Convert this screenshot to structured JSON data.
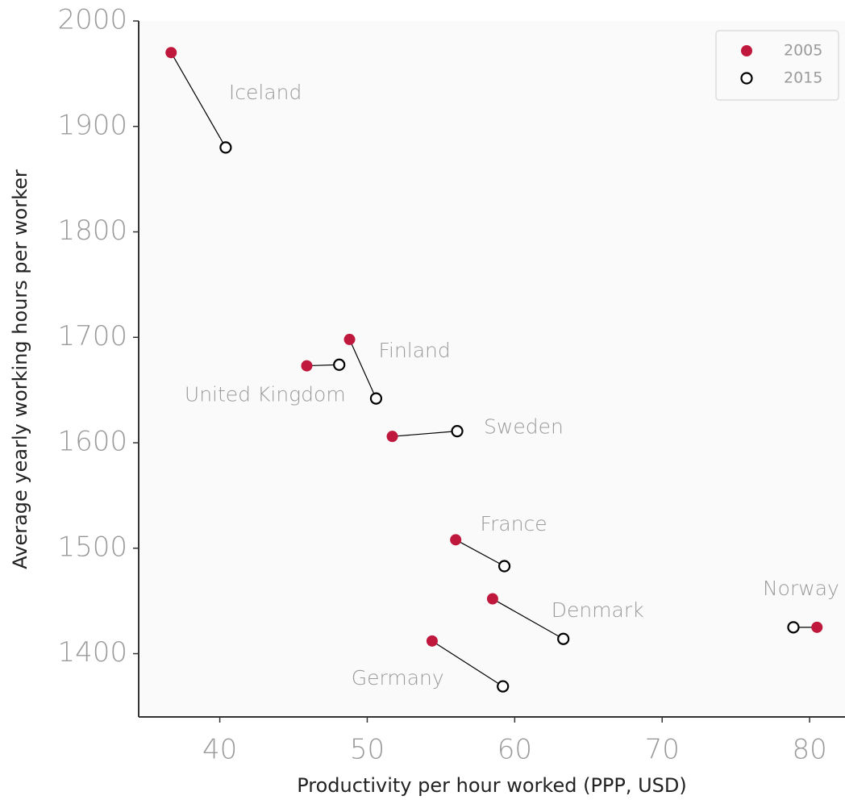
{
  "chart_data": {
    "type": "dumbbell",
    "xlabel": "Productivity per hour worked (PPP, USD)",
    "ylabel": "Average yearly working hours per worker",
    "categories": [
      "Iceland",
      "Finland",
      "United Kingdom",
      "Sweden",
      "France",
      "Denmark",
      "Germany",
      "Norway"
    ],
    "series": [
      {
        "name": "2005",
        "color": "#c0183c",
        "filled": true,
        "x": [
          36.7,
          48.8,
          45.9,
          51.7,
          56.0,
          58.5,
          54.4,
          80.5
        ],
        "values": [
          1970,
          1698,
          1673,
          1606,
          1508,
          1452,
          1412,
          1425
        ]
      },
      {
        "name": "2015",
        "color": "#000000",
        "filled": false,
        "x": [
          40.4,
          50.6,
          48.1,
          56.1,
          59.3,
          63.3,
          59.2,
          78.9
        ],
        "values": [
          1880,
          1642,
          1674,
          1611,
          1483,
          1414,
          1369,
          1425
        ]
      }
    ],
    "xlim": [
      34.5,
      82.4
    ],
    "ylim": [
      1340,
      2000
    ],
    "xticks": [
      40,
      50,
      60,
      70,
      80
    ],
    "yticks": [
      1400,
      1500,
      1600,
      1700,
      1800,
      1900,
      2000
    ],
    "legend": "upper right"
  }
}
